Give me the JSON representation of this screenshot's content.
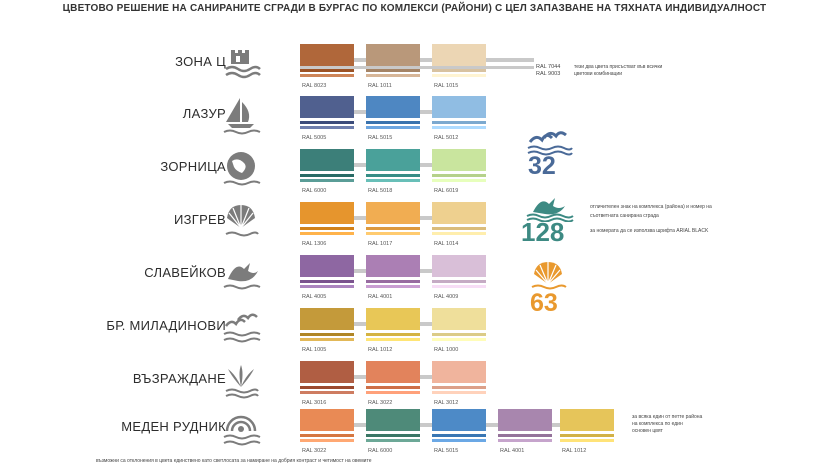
{
  "title": "ЦВЕТОВО РЕШЕНИЕ НА САНИРАНИТЕ СГРАДИ В БУРГАС ПО КОМЛЕКСИ (РАЙОНИ) С ЦЕЛ ЗАПАЗВАНЕ НА ТЯХНАТА ИНДИВИДУАЛНОСТ",
  "zones": [
    {
      "name": "ЗОНА Ц",
      "icon": "castle-icon",
      "swatches": [
        {
          "ral": "RAL 8023",
          "color": "#b0673a"
        },
        {
          "ral": "RAL 1011",
          "color": "#b9987a"
        },
        {
          "ral": "RAL 1015",
          "color": "#ecd6b4"
        }
      ]
    },
    {
      "name": "ЛАЗУР",
      "icon": "sailboat-icon",
      "swatches": [
        {
          "ral": "RAL 5005",
          "color": "#50608f"
        },
        {
          "ral": "RAL 5015",
          "color": "#4e87c2"
        },
        {
          "ral": "RAL 5012",
          "color": "#90bde3"
        }
      ]
    },
    {
      "name": "ЗОРНИЦА",
      "icon": "globe-icon",
      "swatches": [
        {
          "ral": "RAL 6000",
          "color": "#3c7f79"
        },
        {
          "ral": "RAL 5018",
          "color": "#4aa19a"
        },
        {
          "ral": "RAL 6019",
          "color": "#c9e59e"
        }
      ]
    },
    {
      "name": "ИЗГРЕВ",
      "icon": "shell-icon",
      "swatches": [
        {
          "ral": "RAL 1306",
          "color": "#e6952d"
        },
        {
          "ral": "RAL 1017",
          "color": "#f1ad52"
        },
        {
          "ral": "RAL 1014",
          "color": "#eed08f"
        }
      ]
    },
    {
      "name": "СЛАВЕЙКОВ",
      "icon": "bird-icon",
      "swatches": [
        {
          "ral": "RAL 4005",
          "color": "#8e67a2"
        },
        {
          "ral": "RAL 4001",
          "color": "#ab7fb4"
        },
        {
          "ral": "RAL 4009",
          "color": "#d9bfd8"
        }
      ]
    },
    {
      "name": "БР. МИЛАДИНОВИ",
      "icon": "gulls-icon",
      "swatches": [
        {
          "ral": "RAL 1005",
          "color": "#c49a3a"
        },
        {
          "ral": "RAL 1012",
          "color": "#e8c757"
        },
        {
          "ral": "RAL 1000",
          "color": "#efdf9b"
        }
      ]
    },
    {
      "name": "ВЪЗРАЖДАНЕ",
      "icon": "fountain-icon",
      "swatches": [
        {
          "ral": "RAL 3016",
          "color": "#b05e43"
        },
        {
          "ral": "RAL 3022",
          "color": "#e2835c"
        },
        {
          "ral": "RAL 3012",
          "color": "#f0b49d"
        }
      ]
    },
    {
      "name": "МЕДЕН РУДНИК",
      "icon": "sun-waves-icon",
      "swatches": [
        {
          "ral": "RAL 3022",
          "color": "#e98a55"
        },
        {
          "ral": "RAL 6000",
          "color": "#4e8a79"
        },
        {
          "ral": "RAL 5015",
          "color": "#4d8ac7"
        },
        {
          "ral": "RAL 4001",
          "color": "#a886ae"
        },
        {
          "ral": "RAL 1012",
          "color": "#e6c55a"
        }
      ]
    }
  ],
  "common_colors": {
    "ral_a": "RAL 7044",
    "ral_b": "RAL 9003",
    "note_line1": "тези два цвета присъстват във всички",
    "note_line2": "цветови комбинации"
  },
  "marks": [
    {
      "number": "32",
      "color": "#4a6a98",
      "icon": "gulls-icon"
    },
    {
      "number": "128",
      "color": "#3d8a83",
      "icon": "bird-icon"
    },
    {
      "number": "63",
      "color": "#e9992e",
      "icon": "shell-icon"
    }
  ],
  "mark_note": {
    "line1": "отличителен знак на комплекса (района) и номер на",
    "line2": "съответната санирана сграда",
    "line3": "за номерата да се използва шрифта ARIAL BLACK"
  },
  "meden_note": {
    "line1": "за всяка един от петте района",
    "line2": "на комплекса по един",
    "line3": "основен цвят"
  },
  "footer": "възможни са отклонения в цвета единствено като светлосата за намиране на добрия контраст и четимост на овемите"
}
